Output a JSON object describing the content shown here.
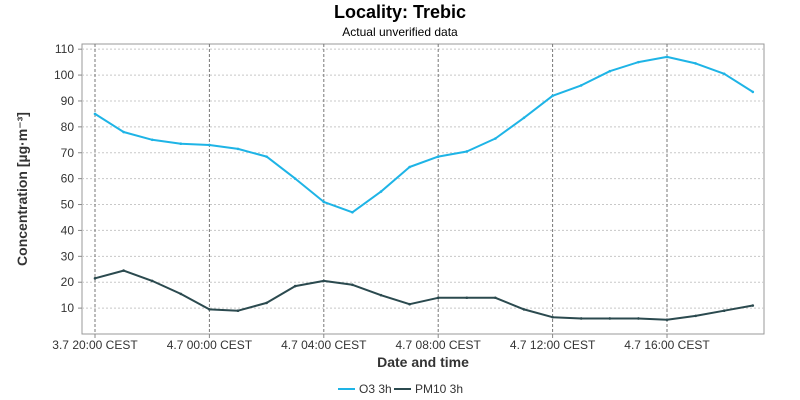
{
  "chart_data": {
    "type": "line",
    "title": "Locality: Trebic",
    "subtitle": "Actual unverified data",
    "xlabel": "Date and time",
    "ylabel": "Concentration [µg·m⁻³]",
    "ylim": [
      0,
      112
    ],
    "yticks": [
      10,
      20,
      30,
      40,
      50,
      60,
      70,
      80,
      90,
      100,
      110
    ],
    "x_tick_labels": [
      "3.7 20:00 CEST",
      "4.7 00:00 CEST",
      "4.7 04:00 CEST",
      "4.7 08:00 CEST",
      "4.7 12:00 CEST",
      "4.7 16:00 CEST"
    ],
    "x_tick_hours": [
      0,
      4,
      8,
      12,
      16,
      20
    ],
    "x_hours": [
      0,
      1,
      2,
      3,
      4,
      5,
      6,
      7,
      8,
      9,
      10,
      11,
      12,
      13,
      14,
      15,
      16,
      17,
      18,
      19,
      20,
      21,
      22,
      23
    ],
    "grid": true,
    "legend_position": "bottom",
    "series": [
      {
        "name": "O3 3h",
        "color": "#1eb4e6",
        "values": [
          85,
          78,
          75,
          73.5,
          73,
          71.5,
          68.5,
          60,
          51,
          47,
          55,
          64.5,
          68.5,
          70.5,
          75.5,
          83.5,
          92,
          96,
          101.5,
          105,
          107,
          104.5,
          100.5,
          93.5
        ]
      },
      {
        "name": "PM10 3h",
        "color": "#2b4a4f",
        "values": [
          21.5,
          24.5,
          20.5,
          15.5,
          9.5,
          9,
          12,
          18.5,
          20.5,
          19,
          15,
          11.5,
          14,
          14,
          14,
          9.5,
          6.5,
          6,
          6,
          6,
          5.5,
          7,
          9,
          11
        ]
      }
    ]
  }
}
